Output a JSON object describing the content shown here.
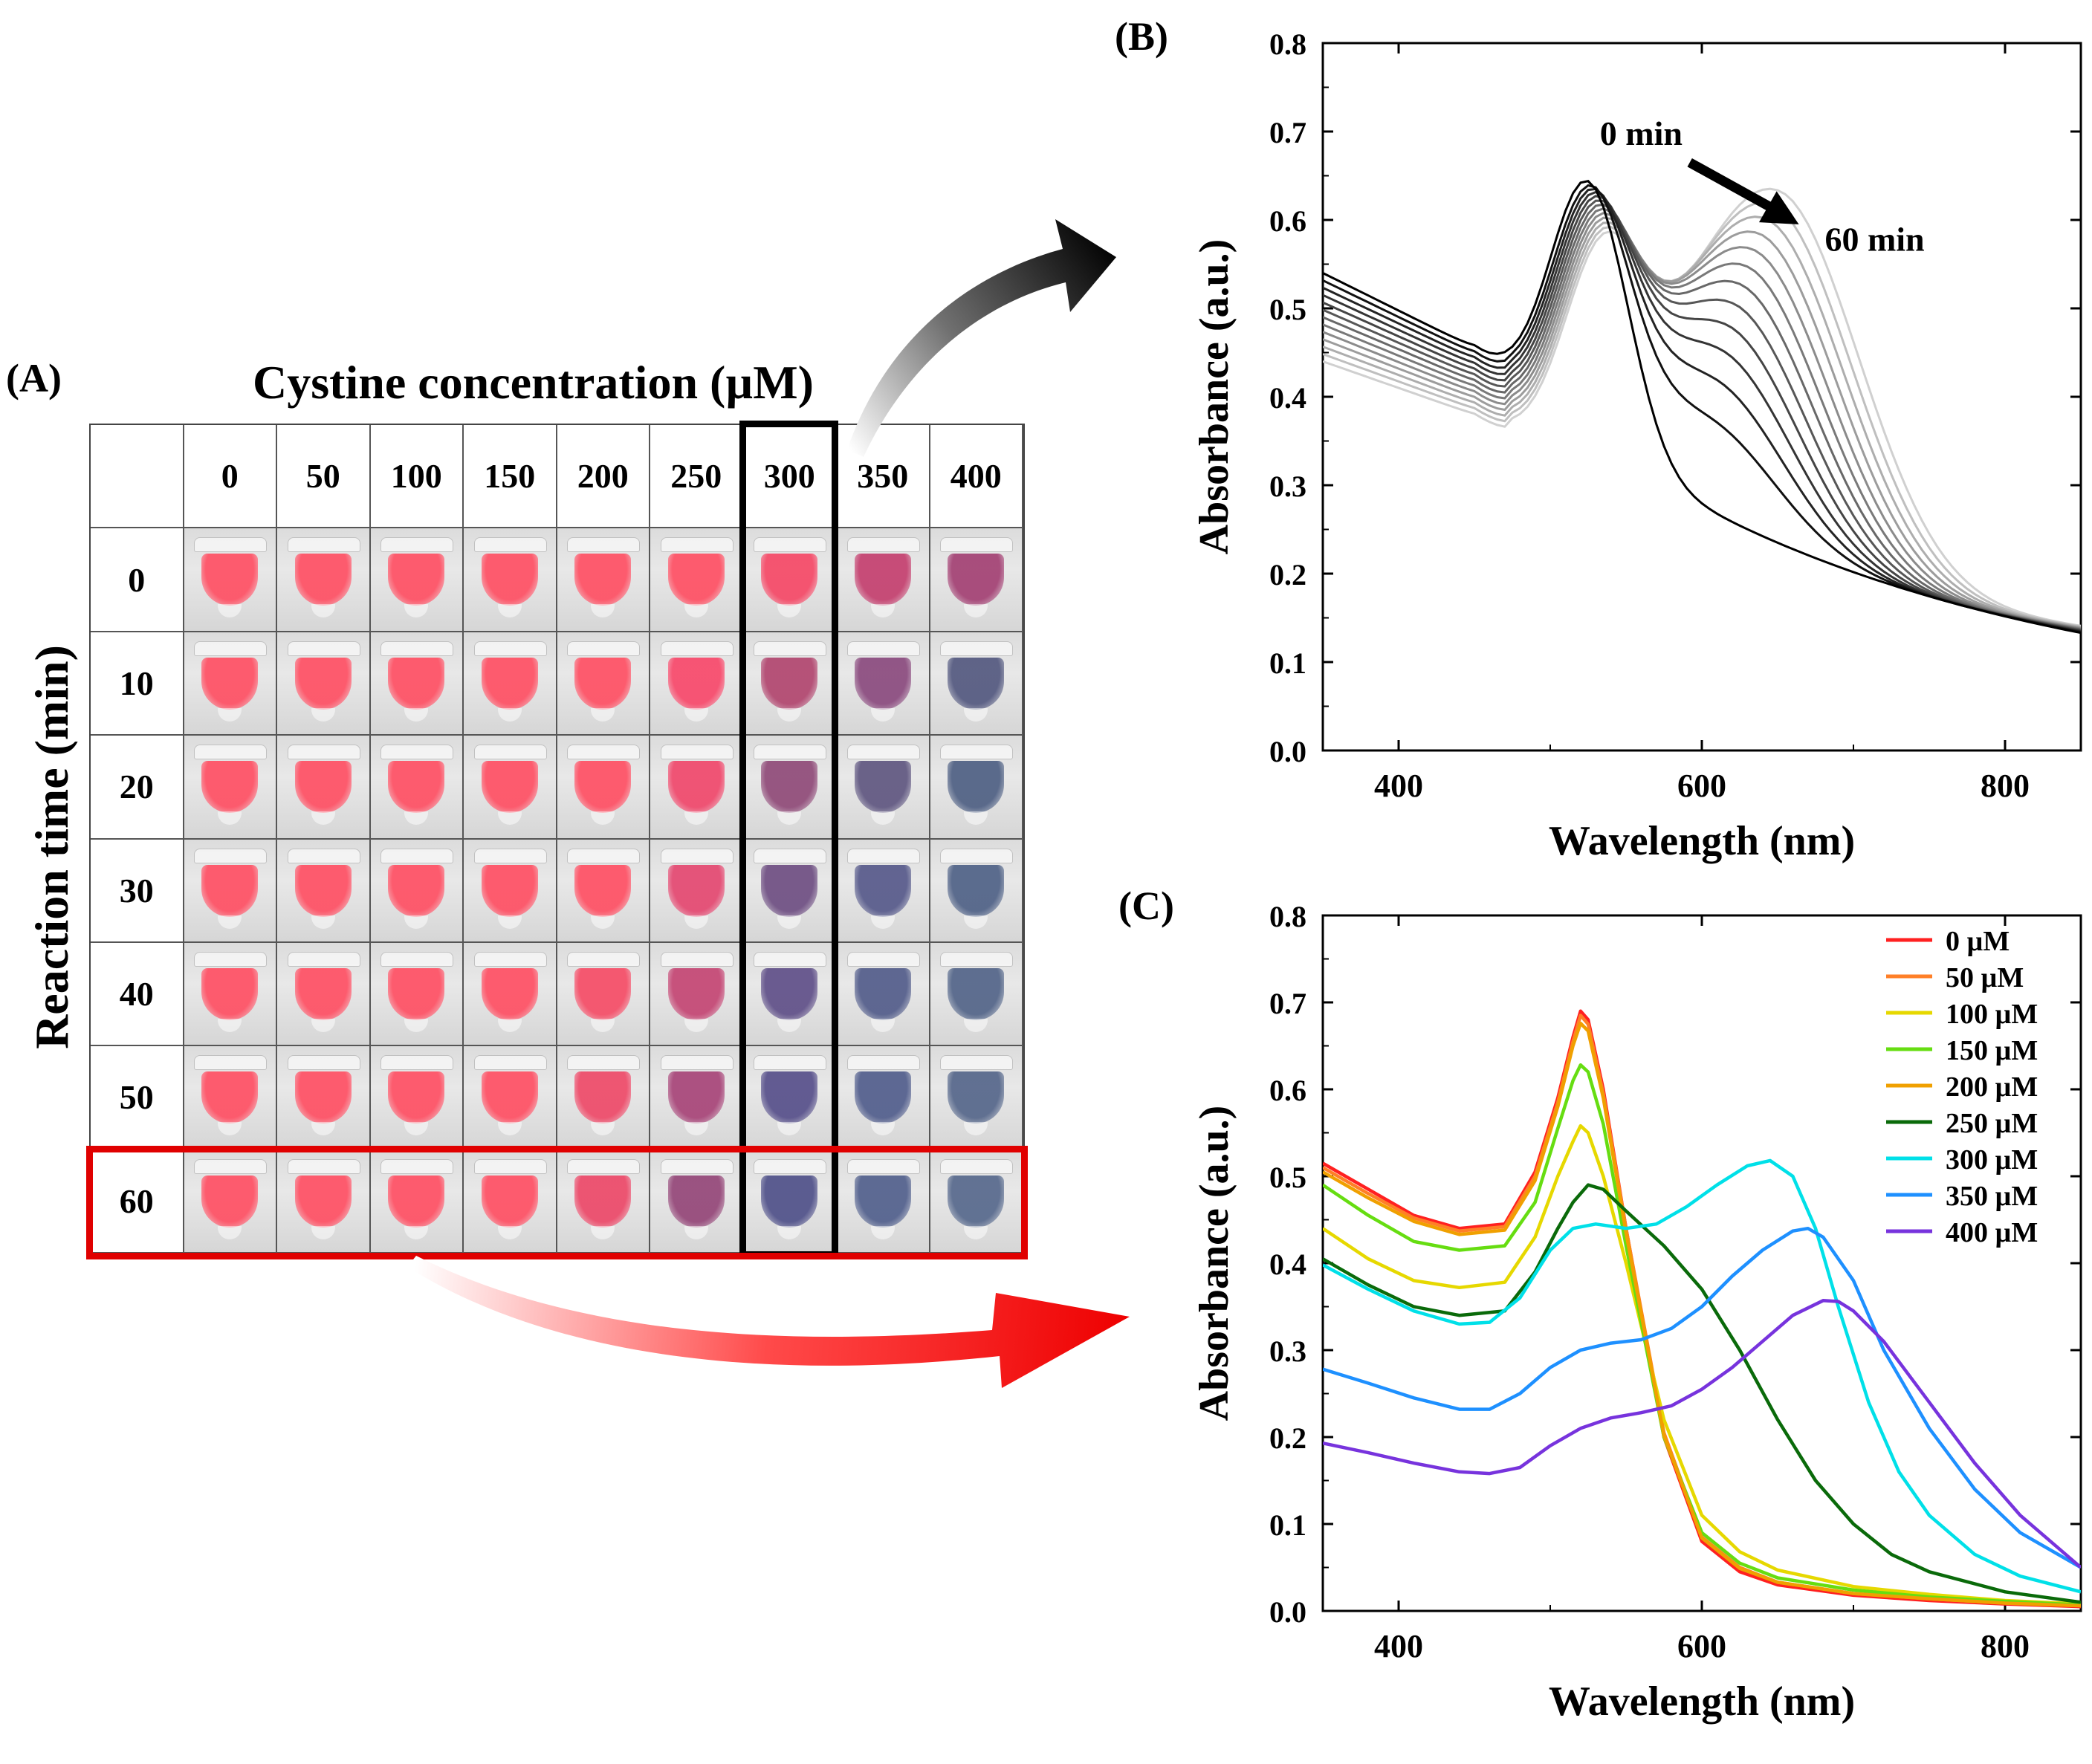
{
  "panel_labels": {
    "a": "(A)",
    "b": "(B)",
    "c": "(C)"
  },
  "panelA": {
    "title": "Cystine concentration (µM)",
    "ylabel": "Reaction time (min)",
    "concentrations": [
      "0",
      "50",
      "100",
      "150",
      "200",
      "250",
      "300",
      "350",
      "400"
    ],
    "times": [
      "0",
      "10",
      "20",
      "30",
      "40",
      "50",
      "60"
    ],
    "highlight_column": "300",
    "highlight_row": "60",
    "tube_colors": [
      [
        "#ff4f63",
        "#ff4f63",
        "#ff4f63",
        "#ff4f63",
        "#ff4f63",
        "#ff4f63",
        "#f54866",
        "#c43f6e",
        "#a34073"
      ],
      [
        "#ff4f63",
        "#ff4f63",
        "#ff4f63",
        "#ff4f63",
        "#ff4f63",
        "#f8486a",
        "#b1456e",
        "#8a4a7e",
        "#53587f"
      ],
      [
        "#ff4f63",
        "#ff4f63",
        "#ff4f63",
        "#ff4f63",
        "#ff4f63",
        "#f0476b",
        "#8f4a78",
        "#5f5680",
        "#4e5f83"
      ],
      [
        "#ff4f63",
        "#ff4f63",
        "#ff4f63",
        "#ff4f63",
        "#ff4f63",
        "#e44770",
        "#6e4e82",
        "#56598a",
        "#4f6186"
      ],
      [
        "#ff4f63",
        "#ff4f63",
        "#ff4f63",
        "#ff4f63",
        "#f54c66",
        "#c44573",
        "#5f4f88",
        "#525c8a",
        "#526488"
      ],
      [
        "#ff4f63",
        "#ff4f63",
        "#ff4f63",
        "#ff4f63",
        "#ee4968",
        "#a74478",
        "#564f8a",
        "#515d8c",
        "#55668a"
      ],
      [
        "#ff4f63",
        "#ff4f63",
        "#ff4f63",
        "#ff4f63",
        "#ec4868",
        "#944678",
        "#4f5089",
        "#515f8c",
        "#56688c"
      ]
    ],
    "grid_color": "#555555",
    "col_highlight_color": "#000000",
    "row_highlight_color": "#e00000"
  },
  "chart_data": [
    {
      "type": "line",
      "panel": "B",
      "title": "",
      "xlabel": "Wavelength (nm)",
      "ylabel": "Absorbance (a.u.)",
      "xlim": [
        350,
        850
      ],
      "ylim": [
        0.0,
        0.8
      ],
      "xticks": [
        "400",
        "600",
        "800"
      ],
      "xtick_values": [
        400,
        600,
        800
      ],
      "yticks": [
        "0.0",
        "0.1",
        "0.2",
        "0.3",
        "0.4",
        "0.5",
        "0.6",
        "0.7",
        "0.8"
      ],
      "ytick_values": [
        0.0,
        0.1,
        0.2,
        0.3,
        0.4,
        0.5,
        0.6,
        0.7,
        0.8
      ],
      "annotations": [
        {
          "text": "0 min",
          "x": 560,
          "y": 0.685
        },
        {
          "text": "60 min",
          "x": 714,
          "y": 0.565
        }
      ],
      "arrow": {
        "from": [
          592,
          0.665
        ],
        "to": [
          664,
          0.595
        ],
        "color": "#000000"
      },
      "series_generator": {
        "count": 13,
        "x_start": 350,
        "x_end": 850,
        "x_step": 5,
        "color_dark": "#000000",
        "color_light": "#d0d0d0",
        "start_value_0": 0.54,
        "start_value_60": 0.44,
        "trough_value_0": 0.455,
        "trough_value_60": 0.38,
        "peak1_0": 0.665,
        "peak1_60": 0.52,
        "peak2_0": 0.0,
        "peak2_60": 0.535,
        "peak2_center_0": 600,
        "peak2_center_60": 650,
        "tail_0": 0.045,
        "tail_60": 0.075
      }
    },
    {
      "type": "line",
      "panel": "C",
      "title": "",
      "xlabel": "Wavelength (nm)",
      "ylabel": "Absorbance (a.u.)",
      "xlim": [
        350,
        850
      ],
      "ylim": [
        0.0,
        0.8
      ],
      "xticks": [
        "400",
        "600",
        "800"
      ],
      "xtick_values": [
        400,
        600,
        800
      ],
      "yticks": [
        "0.0",
        "0.1",
        "0.2",
        "0.3",
        "0.4",
        "0.5",
        "0.6",
        "0.7",
        "0.8"
      ],
      "ytick_values": [
        0.0,
        0.1,
        0.2,
        0.3,
        0.4,
        0.5,
        0.6,
        0.7,
        0.8
      ],
      "legend_position": "top-right",
      "series": [
        {
          "name": "0 µM",
          "color": "#ff2020",
          "x": [
            350,
            380,
            410,
            440,
            470,
            490,
            505,
            515,
            520,
            525,
            535,
            550,
            575,
            600,
            625,
            650,
            700,
            750,
            800,
            850
          ],
          "y": [
            0.515,
            0.485,
            0.455,
            0.44,
            0.445,
            0.505,
            0.59,
            0.66,
            0.69,
            0.68,
            0.6,
            0.44,
            0.2,
            0.08,
            0.045,
            0.03,
            0.018,
            0.012,
            0.008,
            0.005
          ]
        },
        {
          "name": "50 µM",
          "color": "#ff7f27",
          "x": [
            350,
            380,
            410,
            440,
            470,
            490,
            505,
            515,
            520,
            525,
            535,
            550,
            575,
            600,
            625,
            650,
            700,
            750,
            800,
            850
          ],
          "y": [
            0.51,
            0.48,
            0.452,
            0.437,
            0.442,
            0.5,
            0.585,
            0.655,
            0.685,
            0.675,
            0.595,
            0.44,
            0.205,
            0.085,
            0.05,
            0.033,
            0.02,
            0.014,
            0.009,
            0.006
          ]
        },
        {
          "name": "100 µM",
          "color": "#e6d800",
          "x": [
            350,
            380,
            410,
            440,
            470,
            490,
            505,
            515,
            520,
            525,
            535,
            550,
            575,
            600,
            625,
            650,
            700,
            750,
            800,
            850
          ],
          "y": [
            0.44,
            0.405,
            0.38,
            0.372,
            0.378,
            0.43,
            0.5,
            0.54,
            0.558,
            0.55,
            0.5,
            0.4,
            0.22,
            0.11,
            0.068,
            0.047,
            0.028,
            0.019,
            0.012,
            0.008
          ]
        },
        {
          "name": "150 µM",
          "color": "#66dd11",
          "x": [
            350,
            380,
            410,
            440,
            470,
            490,
            505,
            515,
            520,
            525,
            535,
            550,
            575,
            600,
            625,
            650,
            700,
            750,
            800,
            850
          ],
          "y": [
            0.49,
            0.455,
            0.425,
            0.415,
            0.42,
            0.47,
            0.555,
            0.61,
            0.628,
            0.62,
            0.56,
            0.42,
            0.2,
            0.09,
            0.055,
            0.038,
            0.024,
            0.016,
            0.011,
            0.007
          ]
        },
        {
          "name": "200 µM",
          "color": "#f0a000",
          "x": [
            350,
            380,
            410,
            440,
            470,
            490,
            505,
            515,
            520,
            525,
            535,
            550,
            575,
            600,
            625,
            650,
            700,
            750,
            800,
            850
          ],
          "y": [
            0.505,
            0.475,
            0.448,
            0.433,
            0.438,
            0.495,
            0.58,
            0.65,
            0.676,
            0.667,
            0.59,
            0.435,
            0.202,
            0.084,
            0.049,
            0.033,
            0.02,
            0.014,
            0.009,
            0.006
          ]
        },
        {
          "name": "250 µM",
          "color": "#0a6a0a",
          "x": [
            350,
            380,
            410,
            440,
            470,
            490,
            505,
            515,
            525,
            535,
            550,
            575,
            600,
            625,
            650,
            675,
            700,
            725,
            750,
            800,
            850
          ],
          "y": [
            0.405,
            0.375,
            0.35,
            0.34,
            0.345,
            0.39,
            0.44,
            0.47,
            0.49,
            0.485,
            0.46,
            0.42,
            0.37,
            0.3,
            0.22,
            0.15,
            0.1,
            0.065,
            0.045,
            0.022,
            0.01
          ]
        },
        {
          "name": "300 µM",
          "color": "#00e0e8",
          "x": [
            350,
            380,
            410,
            440,
            460,
            480,
            500,
            515,
            530,
            550,
            570,
            590,
            610,
            630,
            645,
            660,
            675,
            690,
            710,
            730,
            750,
            780,
            810,
            850
          ],
          "y": [
            0.398,
            0.37,
            0.345,
            0.33,
            0.332,
            0.36,
            0.415,
            0.44,
            0.445,
            0.44,
            0.445,
            0.465,
            0.49,
            0.512,
            0.518,
            0.5,
            0.44,
            0.35,
            0.24,
            0.16,
            0.11,
            0.065,
            0.04,
            0.022
          ]
        },
        {
          "name": "350 µM",
          "color": "#1e90ff",
          "x": [
            350,
            380,
            410,
            440,
            460,
            480,
            500,
            520,
            540,
            560,
            580,
            600,
            620,
            640,
            660,
            670,
            680,
            700,
            720,
            750,
            780,
            810,
            850
          ],
          "y": [
            0.278,
            0.262,
            0.245,
            0.232,
            0.232,
            0.25,
            0.28,
            0.3,
            0.308,
            0.312,
            0.325,
            0.35,
            0.385,
            0.415,
            0.437,
            0.44,
            0.43,
            0.38,
            0.3,
            0.21,
            0.14,
            0.09,
            0.05
          ]
        },
        {
          "name": "400 µM",
          "color": "#7733dd",
          "x": [
            350,
            380,
            410,
            440,
            460,
            480,
            500,
            520,
            540,
            560,
            580,
            600,
            620,
            640,
            660,
            680,
            690,
            700,
            720,
            750,
            780,
            810,
            850
          ],
          "y": [
            0.193,
            0.182,
            0.17,
            0.16,
            0.158,
            0.165,
            0.19,
            0.21,
            0.222,
            0.228,
            0.236,
            0.255,
            0.28,
            0.31,
            0.34,
            0.357,
            0.356,
            0.345,
            0.31,
            0.24,
            0.17,
            0.11,
            0.05
          ]
        }
      ]
    }
  ]
}
